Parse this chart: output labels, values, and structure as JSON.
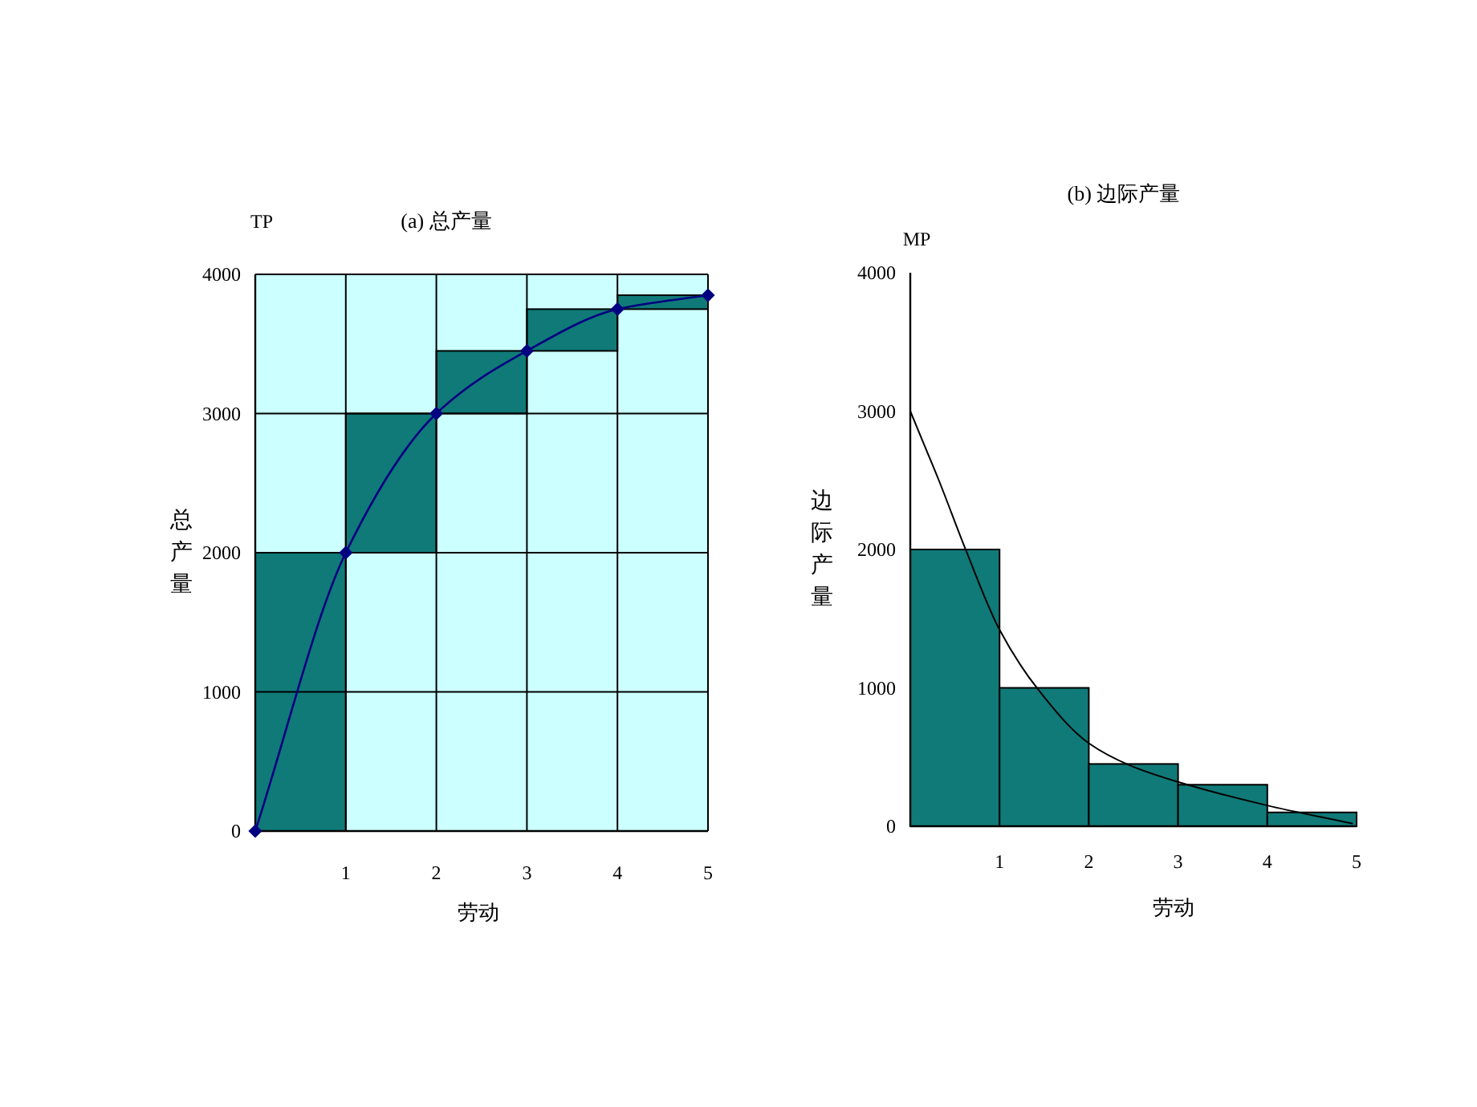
{
  "chart_data": [
    {
      "type": "bar",
      "title": "(a) 总产量",
      "xlabel": "劳动",
      "ylabel": "总产量",
      "annotations": [
        "TP"
      ],
      "x": [
        0.5,
        1.5,
        2.5,
        3.5,
        4.5
      ],
      "series": [
        {
          "color": "#107a78",
          "values": [
            2000,
            1000,
            450,
            300,
            100
          ],
          "base": [
            0,
            2000,
            3000,
            3450,
            3750
          ]
        },
        {
          "type": "line",
          "color": "#000080",
          "marker": "diamond",
          "x": [
            0,
            1,
            2,
            3,
            4,
            5
          ],
          "values": [
            0,
            2000,
            3000,
            3450,
            3750,
            3850
          ]
        }
      ],
      "xlim": [
        0,
        5
      ],
      "xticks": [
        1,
        2,
        3,
        4,
        5
      ],
      "ylim": [
        0,
        4000
      ],
      "yticks": [
        0,
        1000,
        2000,
        3000,
        4000
      ],
      "grid": true
    },
    {
      "type": "bar",
      "title": "(b) 边际产量",
      "xlabel": "劳动",
      "ylabel": "边际产量",
      "annotations": [
        "MP"
      ],
      "x": [
        0.5,
        1.5,
        2.5,
        3.5,
        4.5
      ],
      "series": [
        {
          "color": "#107a78",
          "values": [
            2000,
            1000,
            450,
            300,
            100
          ]
        },
        {
          "type": "line",
          "color": "#000000",
          "x": [
            0,
            0.16,
            0.32,
            0.62,
            1,
            1.43,
            2,
            2.46,
            3,
            4,
            4.95
          ],
          "values": [
            3000,
            2750,
            2500,
            2000,
            1420,
            990,
            600,
            440,
            320,
            150,
            20
          ]
        }
      ],
      "xlim": [
        0,
        5
      ],
      "xticks": [
        1,
        2,
        3,
        4,
        5
      ],
      "ylim": [
        0,
        4000
      ],
      "yticks": [
        0,
        1000,
        2000,
        3000,
        4000
      ]
    }
  ]
}
